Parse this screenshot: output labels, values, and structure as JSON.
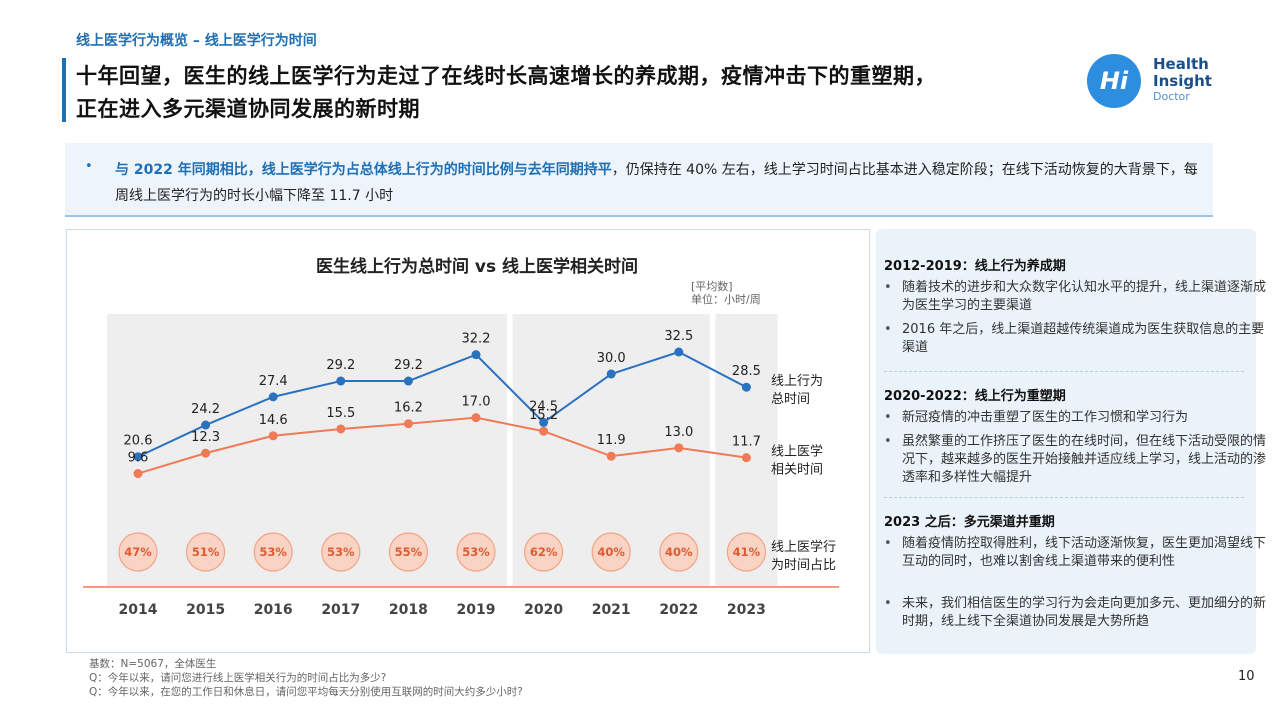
{
  "breadcrumb": "线上医学行为概览 – 线上医学行为时间",
  "title": {
    "line1": "十年回望，医生的线上医学行为走过了在线时长高速增长的养成期，疫情冲击下的重塑期，",
    "line2": "正在进入多元渠道协同发展的新时期"
  },
  "logo": {
    "mark": "Hi",
    "name_line1": "Health",
    "name_line2": "Insight",
    "sub": "Doctor"
  },
  "summary": {
    "bullet": "•",
    "highlight": "与 2022 年同期相比，线上医学行为占总体线上行为的时间比例与去年同期持平",
    "rest": "，仍保持在 40% 左右，线上学习时间占比基本进入稳定阶段；在线下活动恢复的大背景下，每周线上医学行为的时长小幅下降至 11.7 小时"
  },
  "chart_data": {
    "type": "line",
    "title": "医生线上行为总时间 vs 线上医学相关时间",
    "note": "[平均数]",
    "unit": "单位：小时/周",
    "categories": [
      "2014",
      "2015",
      "2016",
      "2017",
      "2018",
      "2019",
      "2020",
      "2021",
      "2022",
      "2023"
    ],
    "series": [
      {
        "name": "线上行为总时间",
        "label_line1": "线上行为",
        "label_line2": "总时间",
        "color": "#2a72c0",
        "values": [
          20.6,
          24.2,
          27.4,
          29.2,
          29.2,
          32.2,
          24.5,
          30.0,
          32.5,
          28.5
        ]
      },
      {
        "name": "线上医学相关时间",
        "label_line1": "线上医学",
        "label_line2": "相关时间",
        "color": "#f07a55",
        "values": [
          9.6,
          12.3,
          14.6,
          15.5,
          16.2,
          17.0,
          15.2,
          11.9,
          13.0,
          11.7
        ]
      }
    ],
    "ratio": {
      "name": "线上医学行为时间占比",
      "label_line1": "线上医学行",
      "label_line2": "为时间占比",
      "values": [
        "47%",
        "51%",
        "53%",
        "53%",
        "55%",
        "53%",
        "62%",
        "40%",
        "40%",
        "41%"
      ]
    },
    "ylim": [
      0,
      36
    ],
    "period_shading": [
      [
        0,
        5
      ],
      [
        6,
        8
      ],
      [
        9,
        9
      ]
    ]
  },
  "periods": [
    {
      "heading": "2012-2019：线上行为养成期",
      "items": [
        "随着技术的进步和大众数字化认知水平的提升，线上渠道逐渐成为医生学习的主要渠道",
        "2016 年之后，线上渠道超越传统渠道成为医生获取信息的主要渠道"
      ]
    },
    {
      "heading": "2020-2022：线上行为重塑期",
      "items": [
        "新冠疫情的冲击重塑了医生的工作习惯和学习行为",
        "虽然繁重的工作挤压了医生的在线时间，但在线下活动受限的情况下，越来越多的医生开始接触并适应线上学习，线上活动的渗透率和多样性大幅提升"
      ]
    },
    {
      "heading": "2023 之后：多元渠道并重期",
      "items": [
        "随着疫情防控取得胜利，线下活动逐渐恢复，医生更加渴望线下互动的同时，也难以割舍线上渠道带来的便利性",
        "未来，我们相信医生的学习行为会走向更加多元、更加细分的新时期，线上线下全渠道协同发展是大势所趋"
      ]
    }
  ],
  "footnotes": {
    "base": "基数：N=5067，全体医生",
    "q1": "Q：今年以来，请问您进行线上医学相关行为的时间占比为多少?",
    "q2": "Q：今年以来，在您的工作日和休息日，请问您平均每天分别使用互联网的时间大约多少小时?"
  },
  "page_number": "10"
}
